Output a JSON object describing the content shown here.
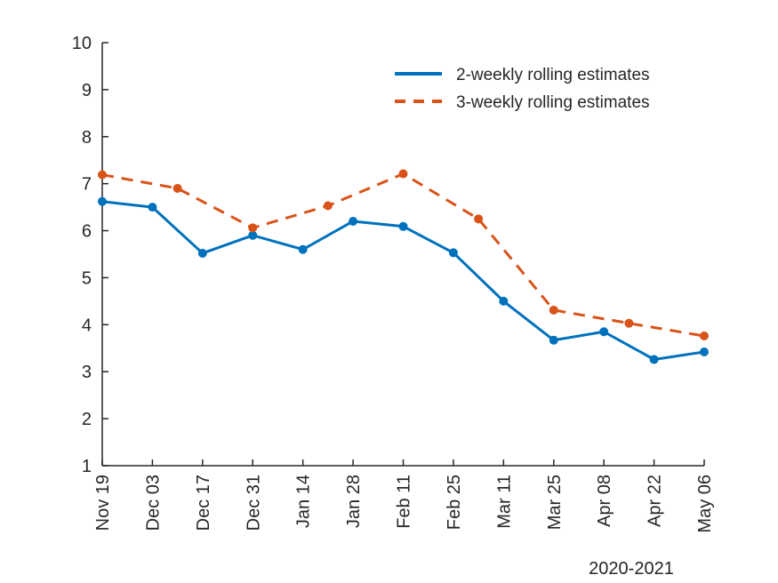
{
  "chart_data": {
    "type": "line",
    "title": "",
    "xlabel": "2020-2021",
    "ylabel": "",
    "ylim": [
      1,
      10
    ],
    "yticks": [
      1,
      2,
      3,
      4,
      5,
      6,
      7,
      8,
      9,
      10
    ],
    "categories": [
      "Nov 19",
      "Dec 03",
      "Dec 17",
      "Dec 31",
      "Jan 14",
      "Jan 28",
      "Feb 11",
      "Feb 25",
      "Mar 11",
      "Mar 25",
      "Apr 08",
      "Apr 22",
      "May 06"
    ],
    "legend_position": "top-right",
    "series": [
      {
        "name": "2-weekly rolling estimates",
        "color": "#0072BD",
        "style": "solid",
        "x": [
          0,
          1,
          2,
          3,
          4,
          5,
          6,
          7,
          8,
          9,
          10,
          11,
          12
        ],
        "values": [
          6.62,
          6.5,
          5.52,
          5.9,
          5.6,
          6.2,
          6.09,
          5.53,
          4.5,
          3.67,
          3.85,
          3.26,
          3.42
        ]
      },
      {
        "name": "3-weekly rolling estimates",
        "color": "#D95319",
        "style": "dashed",
        "x": [
          0,
          1.5,
          3,
          4.5,
          6,
          7.5,
          9,
          10.5,
          12
        ],
        "values": [
          7.19,
          6.9,
          6.06,
          6.53,
          7.21,
          6.25,
          4.31,
          4.03,
          3.76
        ]
      }
    ]
  }
}
